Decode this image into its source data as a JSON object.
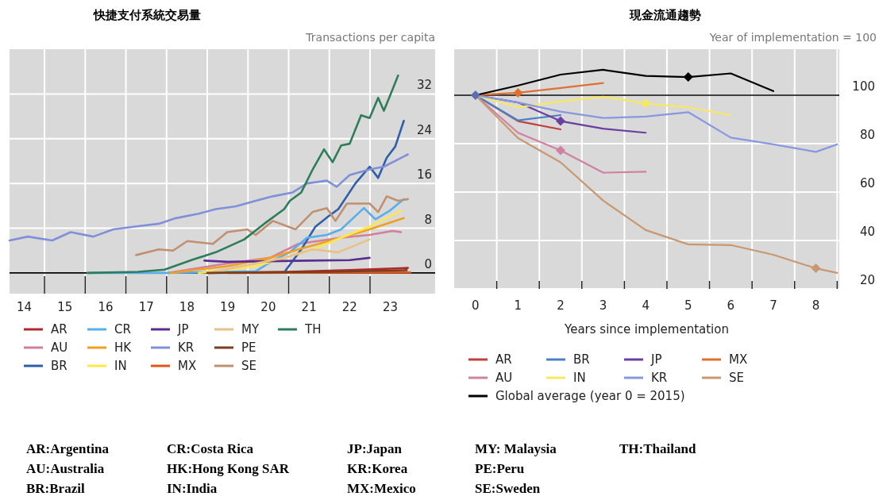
{
  "chart_data": [
    {
      "type": "line",
      "title": "快捷支付系統交易量",
      "ylabel": "Transactions per capita",
      "xlim": [
        13.64,
        24.1
      ],
      "ylim": [
        -3.7,
        40
      ],
      "grid": true,
      "legend": "bottom",
      "xticks": [
        14,
        {
          "value": 14.5,
          "label": null
        },
        15,
        {
          "value": 15.5,
          "label": null
        },
        16,
        {
          "value": 16.5,
          "label": null
        },
        17,
        {
          "value": 17.5,
          "label": null
        },
        18,
        {
          "value": 18.5,
          "label": null
        },
        19,
        {
          "value": 19.5,
          "label": null
        },
        20,
        {
          "value": 20.5,
          "label": null
        },
        21,
        {
          "value": 21.5,
          "label": null
        },
        22,
        {
          "value": 22.5,
          "label": null
        },
        23
      ],
      "yticks": [
        0,
        8,
        16,
        24,
        32
      ],
      "ref_lines": [
        {
          "axis": "y",
          "value": 0,
          "color": "#000000"
        }
      ],
      "series": [
        {
          "name": "AR",
          "color": "#b0282e",
          "x": [
            18.5,
            20.5,
            22.0,
            23.43
          ],
          "values": [
            0,
            0.2,
            0.5,
            0.9
          ]
        },
        {
          "name": "AU",
          "color": "#d47f9a",
          "x": [
            17.52,
            18.99,
            20.04,
            20.74,
            21.79,
            22.49,
            23.05,
            23.26
          ],
          "values": [
            0,
            1.7,
            2.7,
            5.2,
            6.3,
            6.8,
            7.5,
            7.3
          ]
        },
        {
          "name": "BR",
          "color": "#2e5fa8",
          "x": [
            20.42,
            20.81,
            21.16,
            21.51,
            21.72,
            22.14,
            22.49,
            22.7,
            22.91,
            23.12,
            23.33
          ],
          "values": [
            0.4,
            4.2,
            8.3,
            10.3,
            11.4,
            16.0,
            19.0,
            17.0,
            20.6,
            22.6,
            27.2
          ]
        },
        {
          "name": "CR",
          "color": "#5aaee8",
          "x": [
            15.56,
            17.5,
            19.69,
            20.11,
            20.53,
            20.95,
            21.44,
            21.79,
            22.35,
            22.63,
            22.98,
            23.33
          ],
          "values": [
            0,
            0,
            0.3,
            2.2,
            3.7,
            6.3,
            6.8,
            7.8,
            11.6,
            9.6,
            11.1,
            13.2
          ]
        },
        {
          "name": "HK",
          "color": "#f0a020",
          "x": [
            17.59,
            18.99,
            20.04,
            20.74,
            21.79,
            22.49,
            23.33
          ],
          "values": [
            0,
            1.2,
            2.7,
            4.2,
            6.3,
            7.8,
            9.8
          ]
        },
        {
          "name": "IN",
          "color": "#fde84a",
          "x": [
            18.29,
            19.69,
            20.39,
            21.09,
            21.79,
            22.49,
            23.26
          ],
          "values": [
            0,
            1.2,
            2.7,
            4.2,
            6.3,
            8.3,
            11.1
          ]
        },
        {
          "name": "JP",
          "color": "#5b2d8e",
          "x": [
            18.43,
            19.0,
            20.0,
            21.0,
            22.0,
            22.49
          ],
          "values": [
            2.2,
            2.0,
            2.1,
            2.2,
            2.3,
            2.7
          ]
        },
        {
          "name": "KR",
          "color": "#8090d8",
          "x": [
            13.64,
            14.09,
            14.69,
            15.14,
            15.7,
            16.19,
            16.72,
            17.31,
            17.73,
            18.29,
            18.71,
            19.2,
            19.69,
            20.11,
            20.6,
            20.95,
            21.44,
            21.68,
            22.0,
            22.49,
            22.84,
            23.19,
            23.43
          ],
          "values": [
            5.8,
            6.5,
            5.8,
            7.3,
            6.5,
            7.8,
            8.3,
            8.8,
            9.8,
            10.6,
            11.4,
            11.9,
            12.9,
            13.7,
            14.4,
            16.0,
            16.5,
            15.4,
            17.5,
            18.5,
            19.0,
            20.3,
            21.2
          ]
        },
        {
          "name": "MX",
          "color": "#e0561a",
          "x": [
            19.0,
            23.49
          ],
          "values": [
            0,
            0.1
          ]
        },
        {
          "name": "MY",
          "color": "#e8c088",
          "x": [
            18.64,
            20.39,
            21.09,
            21.72,
            22.49
          ],
          "values": [
            0.2,
            2.7,
            4.2,
            3.7,
            6.0
          ]
        },
        {
          "name": "PE",
          "color": "#7b3f1e",
          "x": [
            18.5,
            21.5,
            23.4
          ],
          "values": [
            0,
            0.2,
            0.5
          ]
        },
        {
          "name": "SE",
          "color": "#c09070",
          "x": [
            16.75,
            17.31,
            17.66,
            18.01,
            18.64,
            18.99,
            19.48,
            19.69,
            20.11,
            20.67,
            21.09,
            21.44,
            21.65,
            21.93,
            22.49,
            22.7,
            22.91,
            23.19,
            23.43
          ],
          "values": [
            3.2,
            4.2,
            4.0,
            5.7,
            5.2,
            7.3,
            7.8,
            6.8,
            9.3,
            7.8,
            10.9,
            11.6,
            9.3,
            12.4,
            12.4,
            10.9,
            13.7,
            12.9,
            13.2
          ]
        },
        {
          "name": "TH",
          "color": "#2e7d5a",
          "x": [
            15.56,
            16.8,
            17.45,
            18.15,
            18.71,
            19.41,
            19.9,
            20.39,
            20.53,
            20.81,
            21.09,
            21.37,
            21.58,
            21.79,
            22.0,
            22.28,
            22.49,
            22.7,
            22.84,
            22.98,
            23.19
          ],
          "values": [
            0,
            0.2,
            0.6,
            2.4,
            3.7,
            6.0,
            8.8,
            11.4,
            12.9,
            14.4,
            18.5,
            22.1,
            19.8,
            22.8,
            23.1,
            28.2,
            27.7,
            31.3,
            29.0,
            31.5,
            35.3
          ]
        }
      ]
    },
    {
      "type": "line",
      "title": "現金流通趨勢",
      "ylabel": "Year of implementation = 100",
      "xlabel": "Years since implementation",
      "xlim": [
        -0.5,
        8.55
      ],
      "ylim": [
        20,
        119
      ],
      "grid": true,
      "legend": "bottom",
      "xticks": [
        0,
        {
          "value": 0.5,
          "label": null
        },
        1,
        {
          "value": 1.5,
          "label": null
        },
        2,
        {
          "value": 2.5,
          "label": null
        },
        3,
        {
          "value": 3.5,
          "label": null
        },
        4,
        {
          "value": 4.5,
          "label": null
        },
        5,
        {
          "value": 5.5,
          "label": null
        },
        6,
        {
          "value": 6.5,
          "label": null
        },
        7,
        {
          "value": 7.5,
          "label": null
        },
        8,
        {
          "value": 8.5,
          "label": null
        }
      ],
      "yticks": [
        20,
        40,
        60,
        80,
        100
      ],
      "ref_lines": [
        {
          "axis": "y",
          "value": 100,
          "color": "#000000"
        }
      ],
      "series": [
        {
          "name": "AR",
          "color": "#c04040",
          "x": [
            0,
            1,
            2
          ],
          "values": [
            100,
            89.3,
            85.9
          ]
        },
        {
          "name": "BR",
          "color": "#4a80c8",
          "x": [
            0,
            1,
            2
          ],
          "values": [
            100,
            89.6,
            91.8
          ]
        },
        {
          "name": "JP",
          "color": "#6a3fa0",
          "x": [
            0,
            1,
            2,
            3,
            4
          ],
          "values": [
            100,
            97,
            89.3,
            86.2,
            84.5
          ]
        },
        {
          "name": "MX",
          "color": "#e07030",
          "x": [
            0,
            1,
            2,
            3
          ],
          "values": [
            100,
            101,
            103,
            105
          ]
        },
        {
          "name": "AU",
          "color": "#d080a0",
          "x": [
            0,
            1,
            2,
            3,
            4
          ],
          "values": [
            100,
            84.5,
            77.2,
            68,
            68.4
          ]
        },
        {
          "name": "IN",
          "color": "#f8e860",
          "x": [
            0,
            1,
            2,
            3,
            4,
            5,
            6
          ],
          "values": [
            100,
            95,
            97.4,
            99.4,
            96.6,
            95,
            91.8
          ]
        },
        {
          "name": "KR",
          "color": "#8898e0",
          "x": [
            0,
            1,
            2,
            3,
            4,
            5,
            6,
            7,
            8,
            8.5
          ],
          "values": [
            100,
            97,
            93.2,
            90.6,
            91.2,
            93,
            82.5,
            79.7,
            76.6,
            79.7
          ]
        },
        {
          "name": "SE",
          "color": "#c89870",
          "x": [
            0,
            1,
            2,
            3,
            4,
            5,
            6,
            7,
            8,
            8.5
          ],
          "values": [
            100,
            82.3,
            72.3,
            56.5,
            44.3,
            38.4,
            38.1,
            34.1,
            28.5,
            26.6
          ]
        },
        {
          "name": "Global average (year 0 = 2015)",
          "color": "#000000",
          "x": [
            0,
            1,
            2,
            3,
            4,
            5,
            6,
            7
          ],
          "values": [
            100,
            104,
            108.5,
            110.5,
            108,
            107.5,
            109,
            101.7
          ]
        },
        {
          "type": "scatter",
          "marker": "diamond",
          "x": [
            0,
            1,
            2,
            2,
            4,
            5,
            8
          ],
          "values": [
            100,
            101,
            89.3,
            77.2,
            96.6,
            107.5,
            28.5
          ],
          "colors": [
            "#5a6fb0",
            "#e07030",
            "#6a3fa0",
            "#d080a0",
            "#f8e860",
            "#000000",
            "#c89870"
          ]
        }
      ]
    },
    {
      "type": "other",
      "annotations": [
        "AR:Argentina",
        "AU:Australia",
        "BR:Brazil",
        "CR:Costa Rica",
        "HK:Hong Kong SAR",
        "IN:India",
        "JP:Japan",
        "KR:Korea",
        "MX:Mexico",
        "MY: Malaysia",
        "PE:Peru",
        "SE:Sweden",
        "TH:Thailand"
      ]
    }
  ]
}
